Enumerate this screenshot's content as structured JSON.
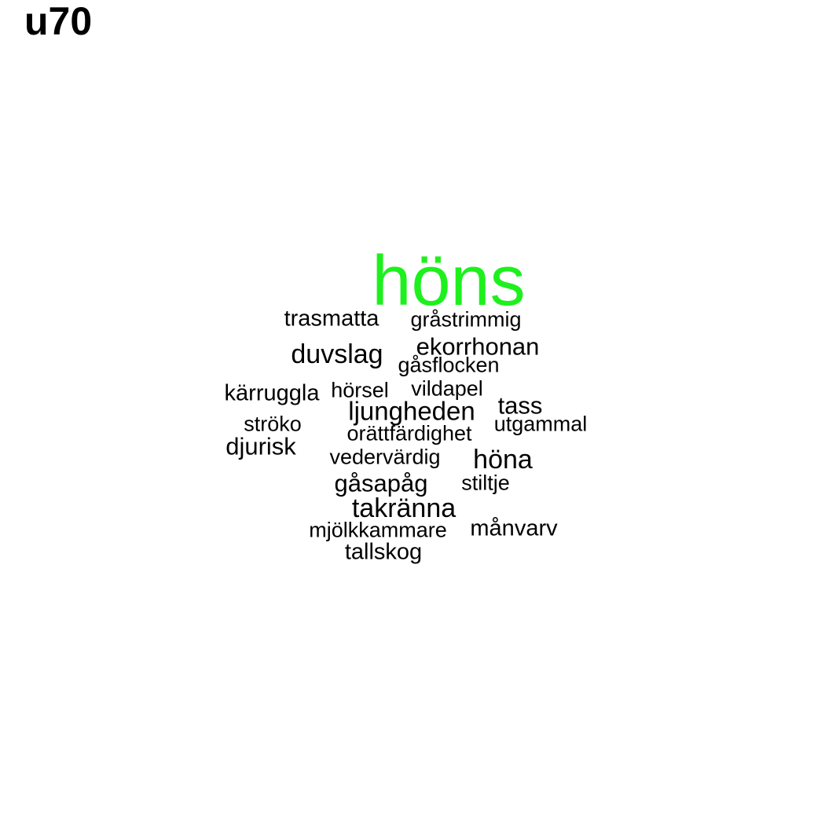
{
  "title": "u70",
  "colors": {
    "background": "#ffffff",
    "highlight": "#1ef01e",
    "default": "#000000"
  },
  "words": [
    {
      "text": "höns",
      "highlight": true
    },
    {
      "text": "trasmatta"
    },
    {
      "text": "gråstrimmig"
    },
    {
      "text": "duvslag"
    },
    {
      "text": "ekorrhonan"
    },
    {
      "text": "gåsflocken"
    },
    {
      "text": "kärruggla"
    },
    {
      "text": "hörsel"
    },
    {
      "text": "vildapel"
    },
    {
      "text": "ljungheden"
    },
    {
      "text": "tass"
    },
    {
      "text": "ströko"
    },
    {
      "text": "orättfärdighet"
    },
    {
      "text": "utgammal"
    },
    {
      "text": "djurisk"
    },
    {
      "text": "vedervärdig"
    },
    {
      "text": "höna"
    },
    {
      "text": "gåsapåg"
    },
    {
      "text": "stiltje"
    },
    {
      "text": "takränna"
    },
    {
      "text": "mjölkkammare"
    },
    {
      "text": "månvarv"
    },
    {
      "text": "tallskog"
    }
  ]
}
